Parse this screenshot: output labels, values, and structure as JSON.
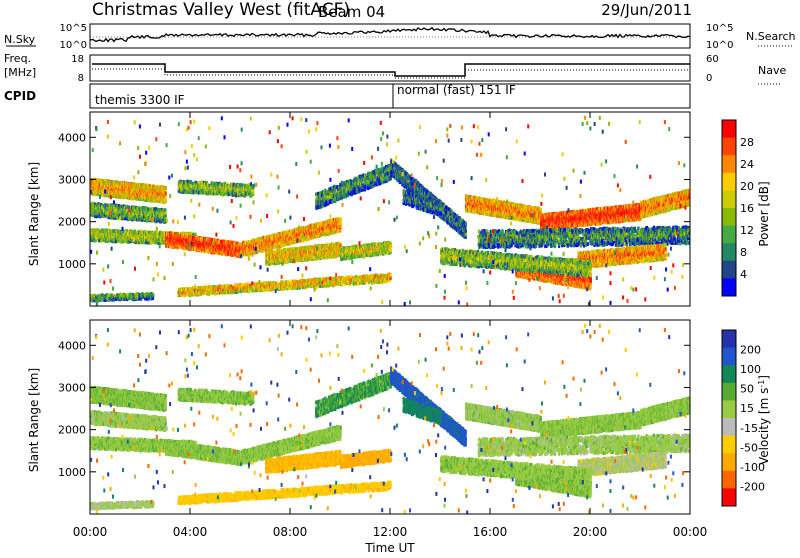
{
  "header": {
    "title": "Christmas Valley West (fitACF)",
    "beam": "Beam 04",
    "date": "29/Jun/2011"
  },
  "strips": {
    "nsky_label": "N.Sky",
    "nsky_ticks": [
      "10^5",
      "10^0"
    ],
    "nsearch_label": "N.Search",
    "nsearch_ticks": [
      "10^5",
      "10^0"
    ],
    "freq_label_1": "Freq.",
    "freq_label_2": "[MHz]",
    "freq_ticks": [
      "18",
      "8"
    ],
    "nave_label": "Nave",
    "nave_ticks": [
      "60",
      "0"
    ],
    "cpid_label": "CPID",
    "cpid_modes": [
      "themis 3300 IF",
      "normal (fast) 151 IF"
    ]
  },
  "panels": {
    "ylabel": "Slant Range [km]",
    "xlabel": "Time UT",
    "yticks": [
      "4000",
      "3000",
      "2000",
      "1000"
    ],
    "xticks": [
      "00:00",
      "04:00",
      "08:00",
      "12:00",
      "16:00",
      "20:00",
      "00:00"
    ]
  },
  "colorbars": {
    "power": {
      "label": "Power [dB]",
      "ticks": [
        "28",
        "24",
        "20",
        "16",
        "12",
        "8",
        "4"
      ],
      "colors": [
        "#ff0000",
        "#ff4400",
        "#ff8800",
        "#ffcc00",
        "#cccc00",
        "#88bb00",
        "#44aa44",
        "#228866",
        "#224488",
        "#0000ff"
      ]
    },
    "velocity": {
      "label": "Velocity [m s",
      "label_sup": "-1",
      "label_end": "]",
      "ticks": [
        "200",
        "100",
        "50",
        "15",
        "-15",
        "-50",
        "-100",
        "-200"
      ],
      "colors": [
        "#2233aa",
        "#2255cc",
        "#118855",
        "#55aa33",
        "#99cc44",
        "#bbbbbb",
        "#ffcc00",
        "#ffaa00",
        "#ff6600",
        "#ff0000"
      ]
    }
  },
  "chart_data": {
    "type": "heatmap",
    "title": "Christmas Valley West (fitACF)",
    "xlabel": "Time UT",
    "ylabel": "Slant Range [km]",
    "x_range": [
      "00:00",
      "24:00"
    ],
    "ylim": [
      0,
      4600
    ],
    "panels": [
      "Power [dB]",
      "Velocity [m s-1]"
    ],
    "power_range": [
      0,
      30
    ],
    "velocity_range": [
      -250,
      250
    ],
    "cpid_change_time": "12:00"
  }
}
